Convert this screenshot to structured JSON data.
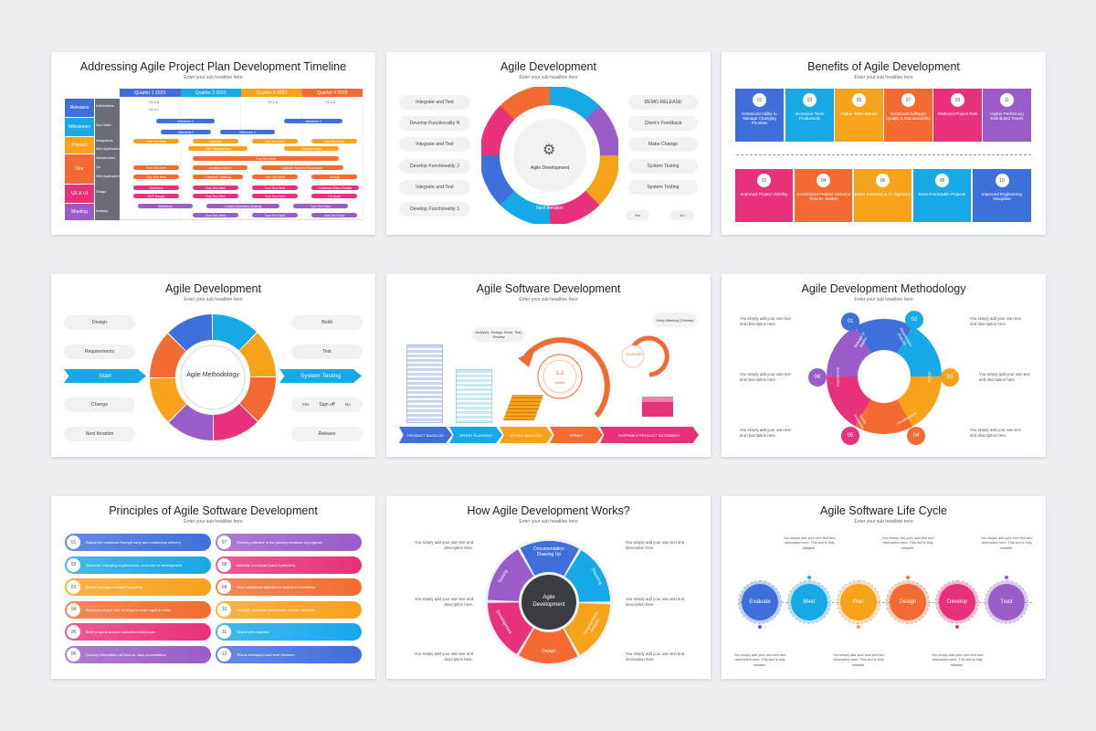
{
  "slides": {
    "s1": {
      "title": "Addressing Agile Project Plan Development Timeline",
      "sub": "Enter your sub headline here",
      "quarters": [
        "Quarter 1 2023",
        "Quarter 2 2023",
        "Quarter 3 2023",
        "Quarter 4 2023"
      ],
      "rows": [
        "Releases",
        "Milestones",
        "Product",
        "Dev",
        "UX & UI",
        "Meeting"
      ],
      "subrows": [
        "Deliverables",
        "",
        "Key Dates",
        "",
        "Integrations",
        "Web Application",
        "Infrastructure",
        "Qa",
        "Web Application",
        "Design",
        "",
        "Desktop"
      ],
      "versions": [
        "V1.0.6",
        "V1.0.1",
        "V1.1.6",
        "V1.2.8"
      ],
      "bars": [
        "Milestone 1",
        "Milestone 3",
        "Milestone 2",
        "Milestone 4",
        "Your Text Here",
        "Launches",
        "Your Text Here",
        "Your Text Here",
        "SMP Management",
        "Vertical Scope",
        "Your Text Here",
        "Your Text Here",
        "Analytics Import",
        "Upgrade System Performance",
        "Your Text Here",
        "Customer Tracking",
        "Your Text Here",
        "Testing",
        "Wireframe",
        "Your Text Here",
        "Your Text Here",
        "Customer Video Peddler",
        "MVP Design",
        "Your Text Here",
        "Your Text Here",
        "UX Audit",
        "Workshop",
        "Content Marketing Strategy",
        "Your Text Here",
        "Your Text Here",
        "Your Text Here",
        "Your Text Here"
      ]
    },
    "s2": {
      "title": "Agile Development",
      "sub": "Enter your sub headline here",
      "left": [
        "Integrate and Test",
        "Develop Functionality N",
        "Integrate and Test",
        "Develop Functionality 2",
        "Integrate and Test",
        "Develop Functionality 1"
      ],
      "right": [
        "DEMO RELEASE",
        "Client's Feedback",
        "Make Change",
        "System Testing",
        "System Testing"
      ],
      "center": "Agile Development",
      "bottom": "Next Iteration",
      "yes": "Yes",
      "no": "No",
      "nums": [
        "01",
        "02",
        "03",
        "04",
        "05",
        "06",
        "07",
        "08",
        "09",
        "10",
        "11"
      ]
    },
    "s3": {
      "title": "Benefits of Agile Development",
      "sub": "Enter your sub headline here",
      "top": [
        {
          "n": "01",
          "t": "Enhanced Ability to Manage Changing Priorities"
        },
        {
          "n": "03",
          "t": "Increased Team Productivity"
        },
        {
          "n": "05",
          "t": "Higher Team Morale"
        },
        {
          "n": "07",
          "t": "Enhanced Software Quality & Maintainability"
        },
        {
          "n": "09",
          "t": "Reduced Project Risk"
        },
        {
          "n": "11",
          "t": "Higher Performing Distributed Teams"
        }
      ],
      "bottom": [
        {
          "n": "02",
          "t": "Improved Project Visibility"
        },
        {
          "n": "04",
          "t": "Accelerated Product Delivery/ Time-to- Market"
        },
        {
          "n": "06",
          "t": "Better Business & IT Alignment"
        },
        {
          "n": "08",
          "t": "More Predictable Projects"
        },
        {
          "n": "10",
          "t": "Improved Engineering Discipline"
        }
      ],
      "colors": [
        "#3f6fdb",
        "#17a8e6",
        "#f7a21b",
        "#f36b32",
        "#e8317a",
        "#9a5cc9"
      ]
    },
    "s4": {
      "title": "Agile Development",
      "sub": "Enter your sub headline here",
      "left": [
        "Design",
        "Requirements",
        "Start",
        "Change",
        "Next Iteration"
      ],
      "right": [
        "Build",
        "Test",
        "System Testing",
        "Sign off",
        "Release"
      ],
      "center": "Agile Methodology",
      "yes": "Yes",
      "no": "No"
    },
    "s5": {
      "title": "Agile Software Development",
      "sub": "Enter your sub headline here",
      "steps": [
        "PRODUCT BACKLOG",
        "SPRINT PLANNING",
        "SPRINT BACKLOG",
        "SPRINT",
        "SHIPPABLE PRODUCT INCREMENT"
      ],
      "bubble1": "Analysis, Design, Build, Test, Review",
      "bubble2": "Daily Meeting (15mins)",
      "center": "1-2",
      "centerSub": "weeks",
      "small": "24 HOURS"
    },
    "s6": {
      "title": "Agile Development Methodology",
      "sub": "Enter your sub headline here",
      "segments": [
        {
          "n": "01",
          "t": "Release to Market"
        },
        {
          "n": "02",
          "t": "Requirement Analysis"
        },
        {
          "n": "03",
          "t": "Design"
        },
        {
          "n": "04",
          "t": "Development"
        },
        {
          "n": "05",
          "t": "Quality Assurance"
        },
        {
          "n": "06",
          "t": "Deployment"
        }
      ],
      "desc": "You simply add your own text and description here."
    },
    "s7": {
      "title": "Principles of Agile Software Development",
      "sub": "Enter your sub headline here",
      "items": [
        {
          "n": "01",
          "t": "Satisfy the customer through early and continuous delivery"
        },
        {
          "n": "02",
          "t": "Welcome changing requirements, even late in development"
        },
        {
          "n": "03",
          "t": "Deliver working software frequently"
        },
        {
          "n": "04",
          "t": "Business people and developers work together daily"
        },
        {
          "n": "05",
          "t": "Build projects around motivated individuals"
        },
        {
          "n": "06",
          "t": "Convey information via face-to- face conversation"
        },
        {
          "n": "07",
          "t": "Working software is the primary measure of progress"
        },
        {
          "n": "08",
          "t": "Maintain a constant pace indefinitely"
        },
        {
          "n": "09",
          "t": "Give continuous attention to technical excellence"
        },
        {
          "n": "10",
          "t": "Simplify- maximize the amount of work not done"
        },
        {
          "n": "11",
          "t": "Teams self-organize"
        },
        {
          "n": "12",
          "t": "Teams retrospect and tune behavior"
        }
      ],
      "colors": [
        "#3f6fdb",
        "#17a8e6",
        "#f7a21b",
        "#f36b32",
        "#e8317a",
        "#9a5cc9",
        "#9a5cc9",
        "#e8317a",
        "#f36b32",
        "#f7a21b",
        "#17a8e6",
        "#3f6fdb"
      ]
    },
    "s8": {
      "title": "How Agile Development Works?",
      "sub": "Enter your sub headline here",
      "center": "Agile Development",
      "segments": [
        "Documentation Drawing Up",
        "Planning",
        "Requirements Analysis",
        "Design",
        "Development",
        "Testing"
      ],
      "desc": "You simply add your own text and description here."
    },
    "s9": {
      "title": "Agile Software Life Cycle",
      "sub": "Enter your sub headline here",
      "circles": [
        "Evaluate",
        "Meet",
        "Plan",
        "Design",
        "Develop",
        "Trust"
      ],
      "colors": [
        "#3f6fdb",
        "#17a8e6",
        "#f7a21b",
        "#f36b32",
        "#e8317a",
        "#9a5cc9"
      ],
      "desc": "You simply add your own text and description here. This text is fully editable."
    }
  }
}
